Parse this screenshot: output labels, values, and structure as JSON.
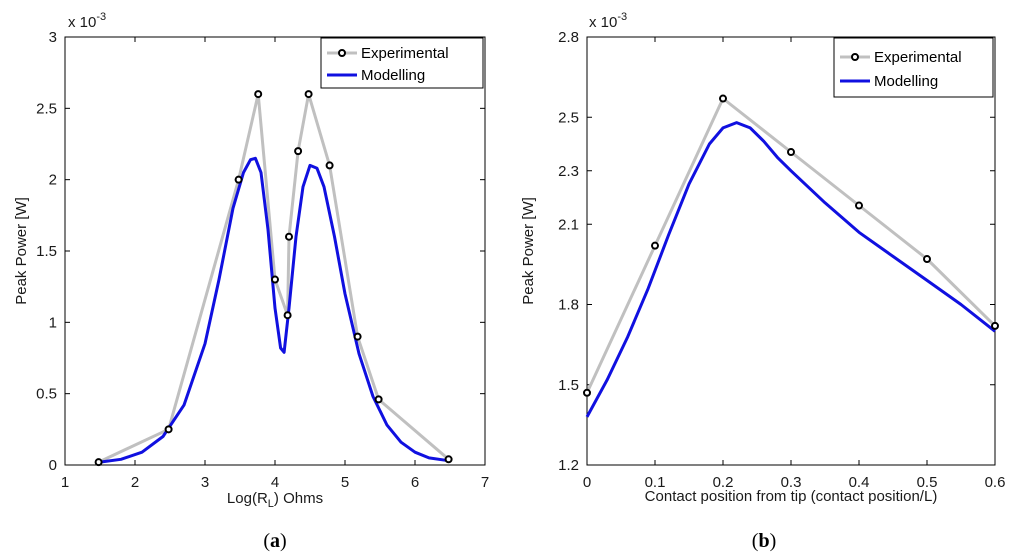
{
  "chart_data": [
    {
      "type": "line",
      "panel_label": "a",
      "ylabel": "Peak Power [W]",
      "xlabel_main": "Log(R",
      "xlabel_sub": "L",
      "xlabel_tail": ") Ohms",
      "multiplier_base": "x 10",
      "multiplier_exp": "-3",
      "xlim": [
        1,
        7
      ],
      "ylim": [
        0,
        3
      ],
      "xticks": [
        1,
        2,
        3,
        4,
        5,
        6,
        7
      ],
      "yticks": [
        0,
        0.5,
        1,
        1.5,
        2,
        2.5,
        3
      ],
      "legend_position": "top-right",
      "series": [
        {
          "name": "Experimental",
          "color": "#c0c0c0",
          "marker": "circle",
          "x": [
            1.48,
            2.48,
            3.48,
            3.76,
            4.0,
            4.18,
            4.2,
            4.33,
            4.48,
            4.78,
            5.18,
            5.48,
            6.48
          ],
          "y": [
            0.02,
            0.25,
            2.0,
            2.6,
            1.3,
            1.05,
            1.6,
            2.2,
            2.6,
            2.1,
            0.9,
            0.46,
            0.04
          ]
        },
        {
          "name": "Modelling",
          "color": "#1010e0",
          "x": [
            1.5,
            1.8,
            2.1,
            2.4,
            2.7,
            3.0,
            3.2,
            3.4,
            3.55,
            3.65,
            3.72,
            3.8,
            3.9,
            4.0,
            4.08,
            4.13,
            4.2,
            4.3,
            4.4,
            4.5,
            4.6,
            4.7,
            4.85,
            5.0,
            5.2,
            5.4,
            5.6,
            5.8,
            6.0,
            6.2,
            6.48
          ],
          "y": [
            0.02,
            0.04,
            0.09,
            0.2,
            0.42,
            0.85,
            1.3,
            1.8,
            2.05,
            2.14,
            2.15,
            2.05,
            1.65,
            1.1,
            0.82,
            0.79,
            1.1,
            1.6,
            1.95,
            2.1,
            2.08,
            1.95,
            1.6,
            1.2,
            0.78,
            0.48,
            0.28,
            0.16,
            0.09,
            0.05,
            0.03
          ]
        }
      ]
    },
    {
      "type": "line",
      "panel_label": "b",
      "ylabel": "Peak Power [W]",
      "xlabel": "Contact position from tip (contact position/L)",
      "multiplier_base": "x 10",
      "multiplier_exp": "-3",
      "xlim": [
        0,
        0.6
      ],
      "ylim": [
        1.2,
        2.8
      ],
      "xticks": [
        0,
        0.1,
        0.2,
        0.3,
        0.4,
        0.5,
        0.6
      ],
      "yticks": [
        1.2,
        1.5,
        1.8,
        2.1,
        2.3,
        2.5,
        2.8
      ],
      "legend_position": "top-right",
      "series": [
        {
          "name": "Experimental",
          "color": "#c0c0c0",
          "marker": "circle",
          "x": [
            0,
            0.1,
            0.2,
            0.3,
            0.4,
            0.5,
            0.6
          ],
          "y": [
            1.47,
            2.02,
            2.57,
            2.37,
            2.17,
            1.97,
            1.72
          ]
        },
        {
          "name": "Modelling",
          "color": "#1010e0",
          "x": [
            0,
            0.03,
            0.06,
            0.09,
            0.12,
            0.15,
            0.18,
            0.2,
            0.22,
            0.24,
            0.26,
            0.28,
            0.3,
            0.35,
            0.4,
            0.45,
            0.5,
            0.55,
            0.6
          ],
          "y": [
            1.38,
            1.52,
            1.68,
            1.86,
            2.06,
            2.25,
            2.4,
            2.46,
            2.48,
            2.46,
            2.41,
            2.35,
            2.3,
            2.18,
            2.07,
            1.98,
            1.89,
            1.8,
            1.7
          ]
        }
      ]
    }
  ]
}
